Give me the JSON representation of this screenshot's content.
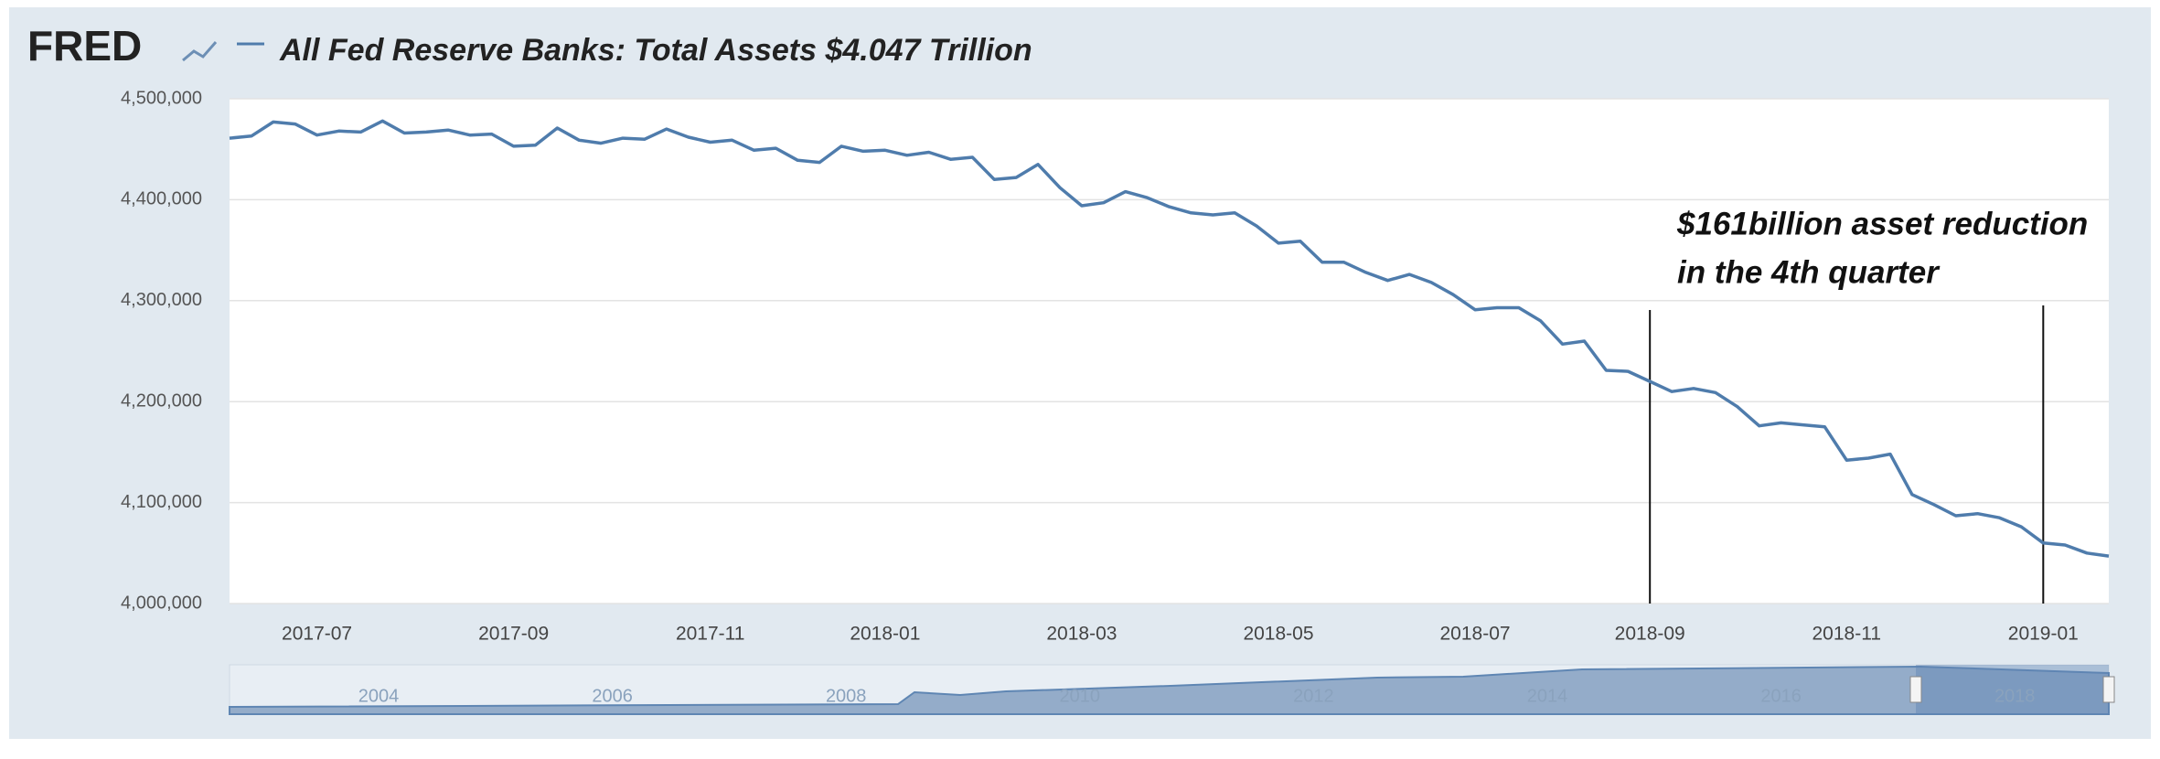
{
  "logo": "FRED",
  "chart_data": {
    "type": "line",
    "title": "All Fed Reserve Banks: Total Assets  $4.047 Trillion",
    "annotation": [
      "$161billion asset reduction",
      "in the 4th quarter"
    ],
    "categories": [
      null,
      null,
      null,
      null,
      "2017-07",
      null,
      null,
      null,
      null,
      null,
      null,
      null,
      null,
      "2017-09",
      null,
      null,
      null,
      null,
      null,
      null,
      null,
      null,
      "2017-11",
      null,
      null,
      null,
      null,
      null,
      null,
      null,
      "2018-01",
      null,
      null,
      null,
      null,
      null,
      null,
      null,
      null,
      "2018-03",
      null,
      null,
      null,
      null,
      null,
      null,
      null,
      null,
      "2018-05",
      null,
      null,
      null,
      null,
      null,
      null,
      null,
      null,
      "2018-07",
      null,
      null,
      null,
      null,
      null,
      null,
      null,
      "2018-09",
      null,
      null,
      null,
      null,
      null,
      null,
      null,
      null,
      "2018-11",
      null,
      null,
      null,
      null,
      null,
      null,
      null,
      null,
      "2019-01",
      null,
      null,
      null
    ],
    "series": [
      {
        "color": "#4f7cac",
        "values": [
          4461000,
          4463000,
          4477000,
          4475000,
          4464000,
          4468000,
          4467000,
          4478000,
          4466000,
          4467000,
          4469000,
          4464000,
          4465000,
          4453000,
          4454000,
          4471000,
          4459000,
          4456000,
          4461000,
          4460000,
          4470000,
          4462000,
          4457000,
          4459000,
          4449000,
          4451000,
          4439000,
          4437000,
          4453000,
          4448000,
          4449000,
          4444000,
          4447000,
          4440000,
          4442000,
          4420000,
          4422000,
          4435000,
          4412000,
          4394000,
          4397000,
          4408000,
          4402000,
          4393000,
          4387000,
          4385000,
          4387000,
          4374000,
          4357000,
          4359000,
          4338000,
          4338000,
          4328000,
          4320000,
          4326000,
          4318000,
          4306000,
          4291000,
          4293000,
          4293000,
          4280000,
          4257000,
          4260000,
          4231000,
          4230000,
          4220000,
          4210000,
          4213000,
          4209000,
          4195000,
          4176000,
          4179000,
          4177000,
          4175000,
          4142000,
          4144000,
          4148000,
          4108000,
          4098000,
          4087000,
          4089000,
          4085000,
          4076000,
          4060000,
          4058000,
          4050000,
          4047000
        ]
      }
    ],
    "ylim": [
      4000000,
      4500000
    ],
    "yticks": [
      {
        "value": 4000000,
        "label": "4,000,000"
      },
      {
        "value": 4100000,
        "label": "4,100,000"
      },
      {
        "value": 4200000,
        "label": "4,200,000"
      },
      {
        "value": 4300000,
        "label": "4,300,000"
      },
      {
        "value": 4400000,
        "label": "4,400,000"
      },
      {
        "value": 4500000,
        "label": "4,500,000"
      }
    ],
    "grid": true,
    "navigator_labels": [
      "2004",
      "2006",
      "2008",
      "2010",
      "2012",
      "2014",
      "2016",
      "2018"
    ]
  }
}
